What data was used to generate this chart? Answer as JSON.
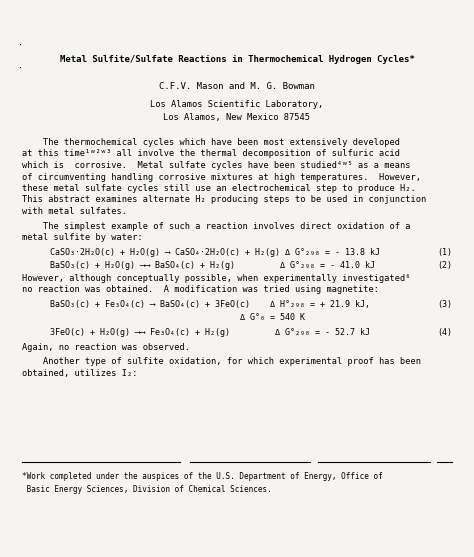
{
  "background_color": "#f5f4f0",
  "title": "Metal Sulfite/Sulfate Reactions in Thermochemical Hydrogen Cycles*",
  "authors": "C.F.V. Mason and M. G. Bowman",
  "affiliation_line1": "Los Alamos Scientific Laboratory,",
  "affiliation_line2": "Los Alamos, New Mexico 87545",
  "footnote": "*Work completed under the auspices of the U.S. Department of Energy, Office of\n Basic Energy Sciences, Division of Chemical Sciences.",
  "fig_width": 4.74,
  "fig_height": 5.57,
  "dpi": 100
}
